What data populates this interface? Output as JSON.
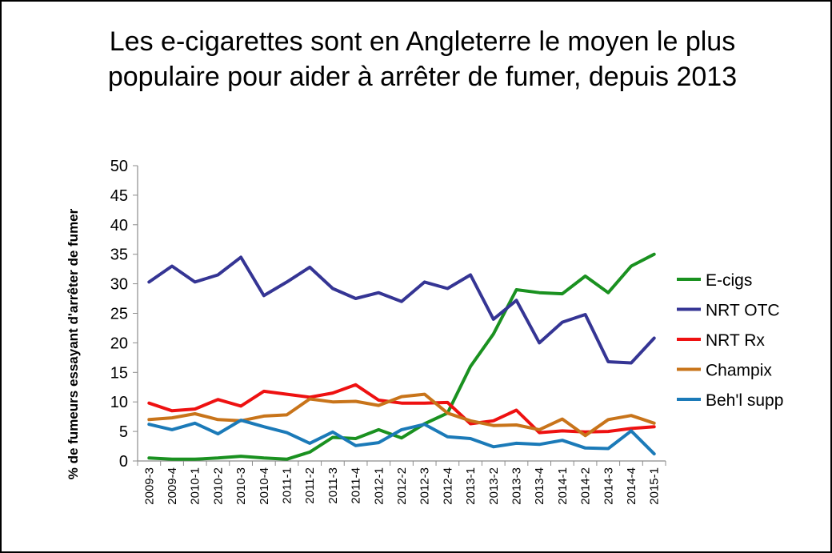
{
  "chart_data": {
    "type": "line",
    "title_lines": [
      "Les e-cigarettes sont en Angleterre le moyen le plus",
      "populaire pour aider à arrêter de fumer, depuis 2013"
    ],
    "xlabel": "",
    "ylabel": "% de fumeurs essayant d'arrêter de fumer",
    "ylim": [
      0,
      50
    ],
    "yticks": [
      0,
      5,
      10,
      15,
      20,
      25,
      30,
      35,
      40,
      45,
      50
    ],
    "grid": false,
    "legend_position": "right",
    "categories": [
      "2009-3",
      "2009-4",
      "2010-1",
      "2010-2",
      "2010-3",
      "2010-4",
      "2011-1",
      "2011-2",
      "2011-3",
      "2011-4",
      "2012-1",
      "2012-2",
      "2012-3",
      "2012-4",
      "2013-1",
      "2013-2",
      "2013-3",
      "2013-4",
      "2014-1",
      "2014-2",
      "2014-3",
      "2014-4",
      "2015-1"
    ],
    "series": [
      {
        "name": "E-cigs",
        "color": "#1a9120",
        "values": [
          0.5,
          0.3,
          0.3,
          0.5,
          0.8,
          0.5,
          0.3,
          1.5,
          4.0,
          3.8,
          5.3,
          3.9,
          6.3,
          8.1,
          16.0,
          21.5,
          29.0,
          28.5,
          28.3,
          31.3,
          28.5,
          33.0,
          35.0
        ]
      },
      {
        "name": "NRT OTC",
        "color": "#353594",
        "values": [
          30.3,
          33.0,
          30.3,
          31.5,
          34.5,
          28.0,
          30.3,
          32.8,
          29.2,
          27.5,
          28.5,
          27.0,
          30.3,
          29.2,
          31.5,
          24.0,
          27.2,
          20.0,
          23.5,
          24.8,
          16.8,
          16.6,
          20.8
        ]
      },
      {
        "name": "NRT Rx",
        "color": "#ee1111",
        "values": [
          9.8,
          8.5,
          8.8,
          10.4,
          9.3,
          11.8,
          11.3,
          10.8,
          11.5,
          12.9,
          10.3,
          9.8,
          9.8,
          9.9,
          6.3,
          6.8,
          8.6,
          4.8,
          5.1,
          4.9,
          5.0,
          5.5,
          5.8
        ]
      },
      {
        "name": "Champix",
        "color": "#c8741a",
        "values": [
          7.0,
          7.3,
          8.0,
          7.0,
          6.8,
          7.6,
          7.8,
          10.5,
          10.0,
          10.1,
          9.4,
          10.9,
          11.3,
          8.1,
          6.8,
          6.0,
          6.1,
          5.3,
          7.1,
          4.3,
          7.0,
          7.7,
          6.4
        ]
      },
      {
        "name": "Beh'l supp",
        "color": "#1b7ab8",
        "values": [
          6.2,
          5.3,
          6.4,
          4.6,
          6.9,
          5.8,
          4.8,
          3.0,
          4.9,
          2.6,
          3.1,
          5.3,
          6.2,
          4.1,
          3.8,
          2.4,
          3.0,
          2.8,
          3.5,
          2.2,
          2.1,
          5.1,
          1.2
        ]
      }
    ]
  }
}
